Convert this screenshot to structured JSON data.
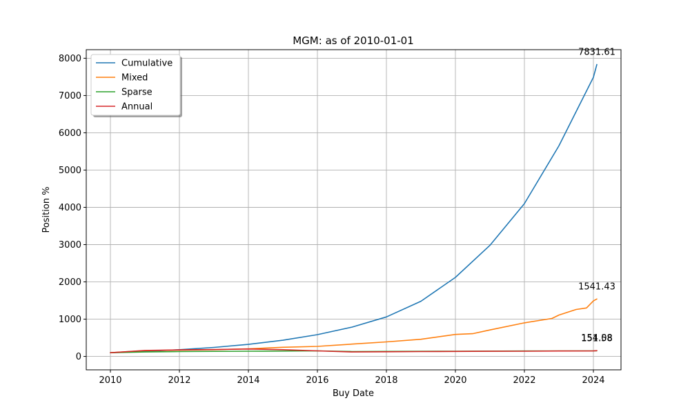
{
  "chart_data": {
    "type": "line",
    "title": "MGM: as of 2010-01-01",
    "xlabel": "Buy Date",
    "ylabel": "Position %",
    "xlim": [
      2009.3,
      2024.8
    ],
    "ylim": [
      -360,
      8230
    ],
    "x_ticks": [
      2010,
      2012,
      2014,
      2016,
      2018,
      2020,
      2022,
      2024
    ],
    "x_tick_labels": [
      "2010",
      "2012",
      "2014",
      "2016",
      "2018",
      "2020",
      "2022",
      "2024"
    ],
    "y_ticks": [
      0,
      1000,
      2000,
      3000,
      4000,
      5000,
      6000,
      7000,
      8000
    ],
    "y_tick_labels": [
      "0",
      "1000",
      "2000",
      "3000",
      "4000",
      "5000",
      "6000",
      "7000",
      "8000"
    ],
    "grid": true,
    "legend_position": "top-left",
    "series": [
      {
        "name": "Cumulative",
        "color": "#1f77b4",
        "x": [
          2010,
          2011,
          2012,
          2013,
          2014,
          2015,
          2016,
          2017,
          2018,
          2019,
          2020,
          2021,
          2022,
          2023,
          2024,
          2024.1
        ],
        "y": [
          100,
          134,
          180,
          242,
          324,
          435,
          585,
          786,
          1060,
          1480,
          2120,
          2980,
          4100,
          5650,
          7490,
          7831.61
        ],
        "end_label": "7831.61"
      },
      {
        "name": "Mixed",
        "color": "#ff7f0e",
        "x": [
          2010,
          2011,
          2012,
          2013,
          2014,
          2015,
          2016,
          2017,
          2018,
          2019,
          2020,
          2020.5,
          2021,
          2022,
          2022.8,
          2023,
          2023.5,
          2023.8,
          2024,
          2024.1
        ],
        "y": [
          100,
          155,
          170,
          180,
          205,
          245,
          270,
          330,
          390,
          460,
          590,
          610,
          710,
          900,
          1020,
          1110,
          1260,
          1300,
          1490,
          1541.43
        ],
        "end_label": "1541.43"
      },
      {
        "name": "Sparse",
        "color": "#2ca02c",
        "x": [
          2010,
          2011,
          2012,
          2014,
          2016,
          2017,
          2018,
          2020,
          2022,
          2024,
          2024.1
        ],
        "y": [
          100,
          120,
          130,
          140,
          150,
          130,
          135,
          140,
          145,
          150,
          151.58
        ],
        "end_label": "151.58"
      },
      {
        "name": "Annual",
        "color": "#d62728",
        "x": [
          2010,
          2011,
          2012,
          2013,
          2014,
          2015,
          2016,
          2017,
          2018,
          2019,
          2020,
          2021,
          2022,
          2023,
          2024,
          2024.1
        ],
        "y": [
          100,
          160,
          175,
          185,
          200,
          180,
          150,
          120,
          125,
          130,
          135,
          138,
          140,
          145,
          148,
          154.08
        ],
        "end_label": "154.08"
      }
    ]
  }
}
